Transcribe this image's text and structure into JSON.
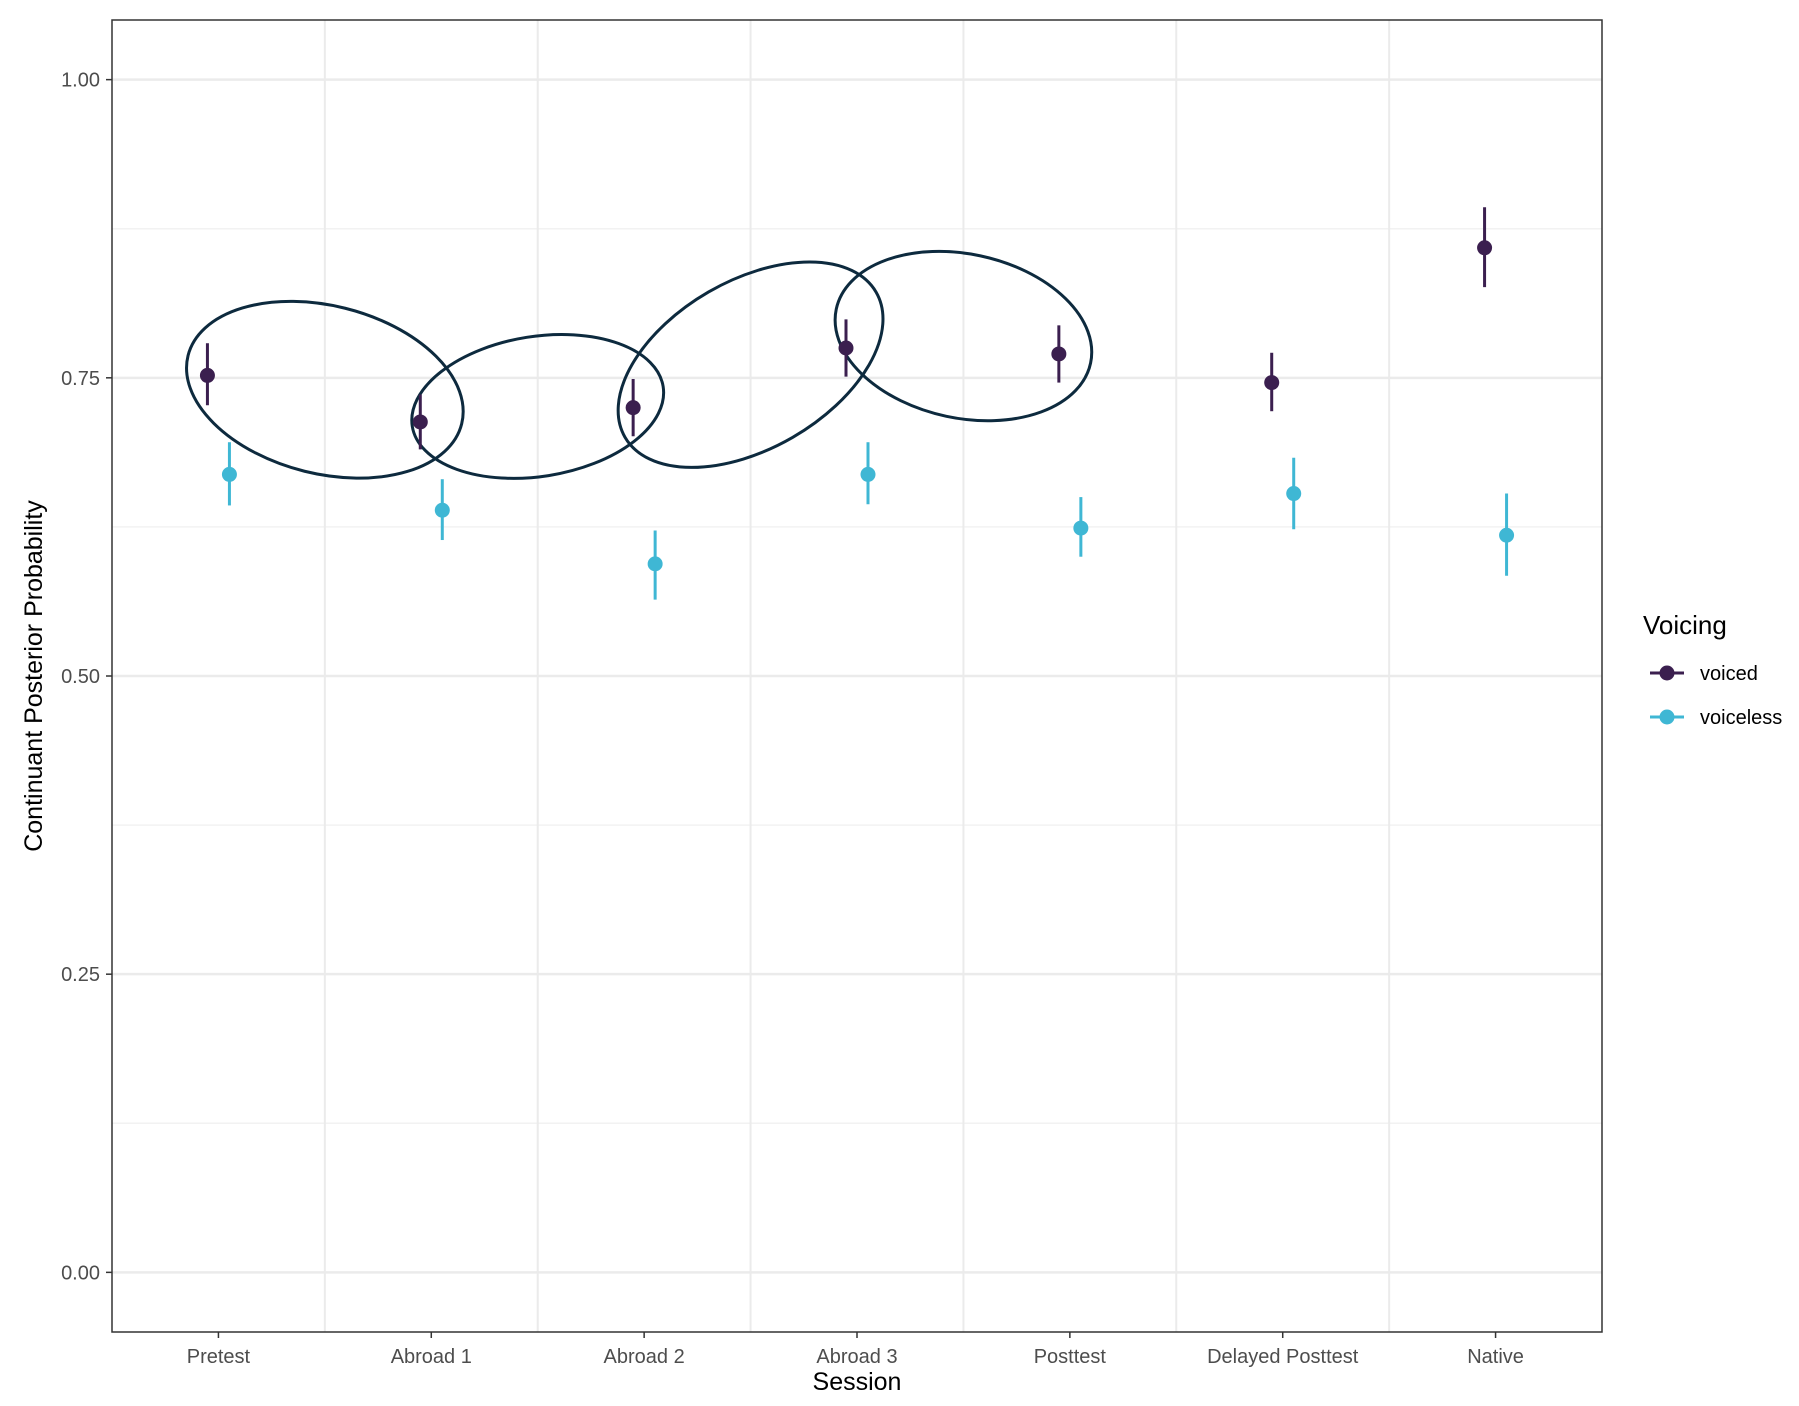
{
  "chart_data": {
    "type": "scatter",
    "title": "",
    "xlabel": "Session",
    "ylabel": "Continuant Posterior Probability",
    "categories": [
      "Pretest",
      "Abroad 1",
      "Abroad 2",
      "Abroad 3",
      "Posttest",
      "Delayed Posttest",
      "Native"
    ],
    "ylim": [
      -0.05,
      1.05
    ],
    "yticks": [
      0.0,
      0.25,
      0.5,
      0.75,
      1.0
    ],
    "ytick_labels": [
      "0.00",
      "0.25",
      "0.50",
      "0.75",
      "1.00"
    ],
    "grid": true,
    "legend": {
      "title": "Voicing",
      "position": "right"
    },
    "series": [
      {
        "name": "voiced",
        "color": "#3b1f4f",
        "values": [
          0.752,
          0.713,
          0.725,
          0.775,
          0.77,
          0.746,
          0.859
        ],
        "lower": [
          0.727,
          0.69,
          0.701,
          0.751,
          0.746,
          0.722,
          0.826
        ],
        "upper": [
          0.779,
          0.736,
          0.749,
          0.799,
          0.794,
          0.771,
          0.893
        ]
      },
      {
        "name": "voiceless",
        "color": "#3fb7d4",
        "values": [
          0.669,
          0.639,
          0.594,
          0.669,
          0.624,
          0.653,
          0.618
        ],
        "lower": [
          0.643,
          0.614,
          0.564,
          0.644,
          0.6,
          0.623,
          0.584
        ],
        "upper": [
          0.696,
          0.665,
          0.622,
          0.696,
          0.65,
          0.683,
          0.653
        ]
      }
    ],
    "annotations": [
      {
        "type": "ellipse",
        "center_x": 0.5,
        "center_y": 0.74,
        "description": "grouping ring around Pretest and Abroad 1 voiced"
      },
      {
        "type": "ellipse",
        "center_x": 1.5,
        "center_y": 0.726,
        "description": "grouping ring around Abroad 1 and Abroad 2 voiced"
      },
      {
        "type": "ellipse",
        "center_x": 2.5,
        "center_y": 0.761,
        "description": "grouping ring around Abroad 2 and Abroad 3 voiced"
      },
      {
        "type": "ellipse",
        "center_x": 3.5,
        "center_y": 0.785,
        "description": "grouping ring around Abroad 3 and Posttest voiced"
      }
    ],
    "annotation_color": "#0d2a3e"
  }
}
